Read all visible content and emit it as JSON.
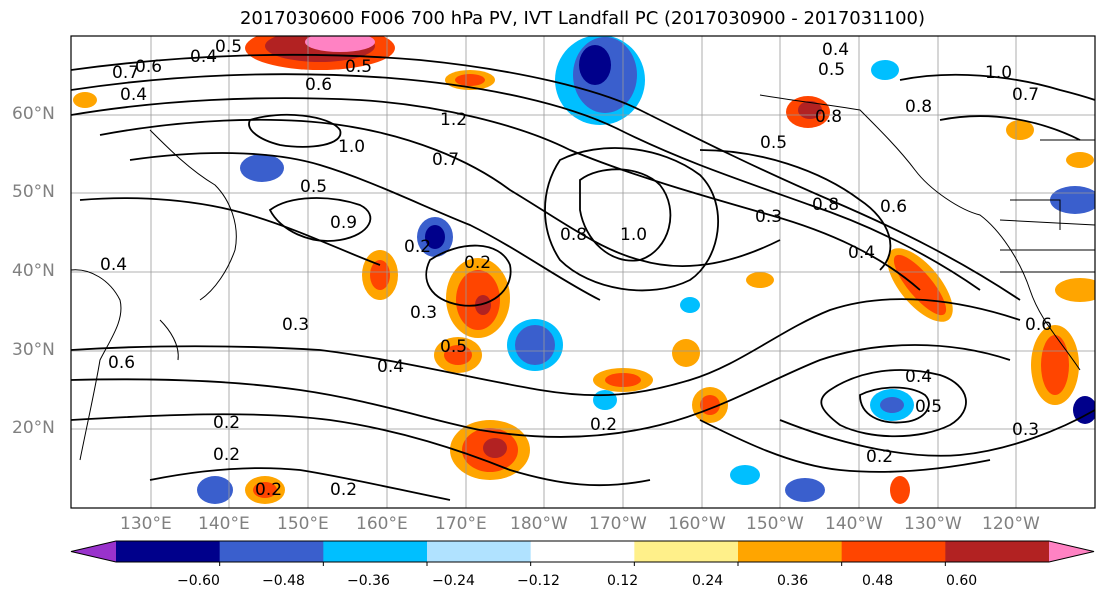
{
  "title": "2017030600 F006 700 hPa PV, IVT Landfall PC (2017030900 - 2017031100)",
  "lat_labels": [
    "60°N",
    "50°N",
    "40°N",
    "30°N",
    "20°N"
  ],
  "lon_labels": [
    "130°E",
    "140°E",
    "150°E",
    "160°E",
    "170°E",
    "180°W",
    "170°W",
    "160°W",
    "150°W",
    "140°W",
    "130°W",
    "120°W"
  ],
  "colorbar": {
    "ticks": [
      "−0.60",
      "−0.48",
      "−0.36",
      "−0.24",
      "−0.12",
      "0.12",
      "0.24",
      "0.36",
      "0.48",
      "0.60"
    ],
    "colors": [
      "#9932cc",
      "#00008b",
      "#3a5fcd",
      "#00bfff",
      "#b0e2ff",
      "#ffffff",
      "#fff08a",
      "#ffa500",
      "#ff4500",
      "#b22222",
      "#ff82c3"
    ]
  },
  "contour_labels": [
    "0.7",
    "0.5",
    "0.6",
    "0.4",
    "0.6",
    "0.5",
    "0.4",
    "0.5",
    "1.0",
    "0.7",
    "1.2",
    "0.8",
    "0.5",
    "0.3",
    "0.8",
    "0.6",
    "0.4",
    "0.2",
    "1.0",
    "0.8",
    "0.2",
    "0.3",
    "0.5",
    "0.4",
    "0.2",
    "0.2",
    "0.2",
    "0.4",
    "0.5",
    "0.3",
    "0.2",
    "0.6",
    "0.4",
    "0.7",
    "1.0",
    "0.5",
    "0.6",
    "0.9",
    "0.8",
    "0.2",
    "0.5",
    "0.3",
    "0.2"
  ]
}
